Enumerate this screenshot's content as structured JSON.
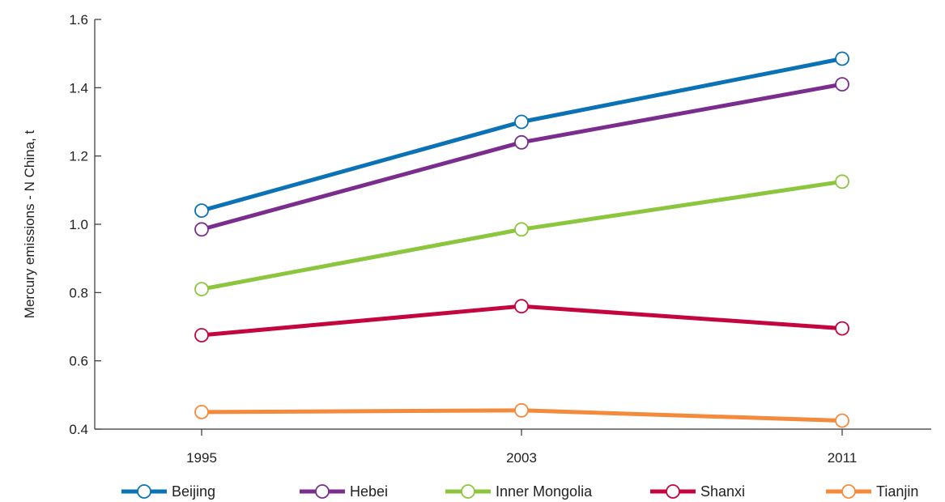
{
  "chart_data": {
    "type": "line",
    "title": "",
    "xlabel": "",
    "ylabel": "Mercury emissions - N China, t",
    "x": [
      "1995",
      "2003",
      "2011"
    ],
    "ylim": [
      0.4,
      1.6
    ],
    "yticks": [
      "0.4",
      "0.6",
      "0.8",
      "1.0",
      "1.2",
      "1.4",
      "1.6"
    ],
    "grid": false,
    "legend_position": "bottom",
    "series": [
      {
        "name": "Beijing",
        "color": "#0a72b5",
        "values": [
          1.04,
          1.3,
          1.485
        ]
      },
      {
        "name": "Hebei",
        "color": "#7b2d8e",
        "values": [
          0.985,
          1.24,
          1.41
        ]
      },
      {
        "name": "Inner Mongolia",
        "color": "#8cc63f",
        "values": [
          0.81,
          0.985,
          1.125
        ]
      },
      {
        "name": "Shanxi",
        "color": "#c4063f",
        "values": [
          0.675,
          0.76,
          0.695
        ]
      },
      {
        "name": "Tianjin",
        "color": "#f48a3c",
        "values": [
          0.45,
          0.455,
          0.425
        ]
      }
    ]
  }
}
